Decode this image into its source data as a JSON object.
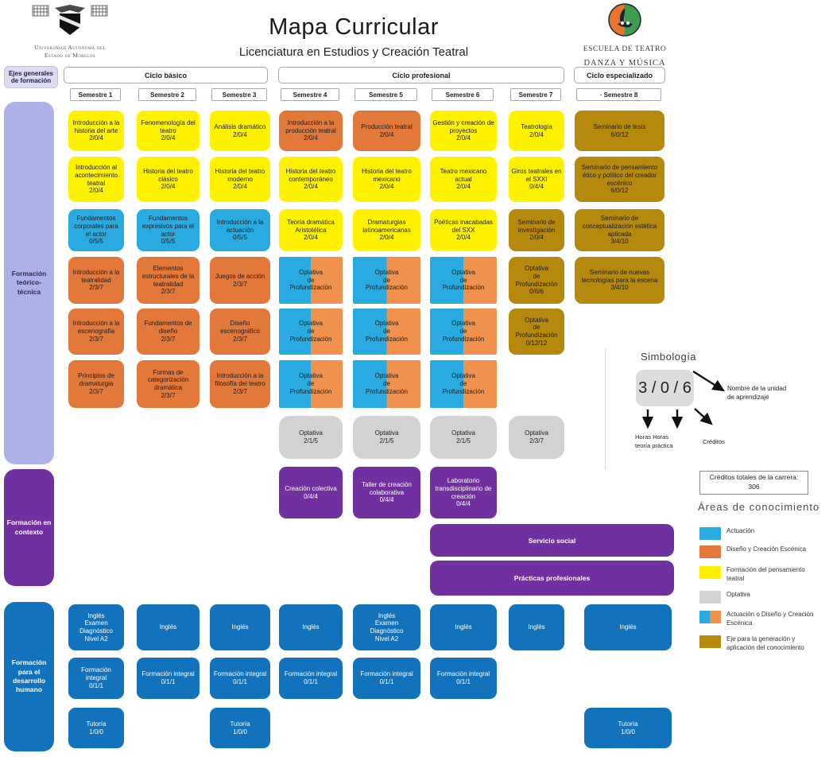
{
  "header": {
    "title": "Mapa Curricular",
    "subtitle": "Licenciatura en Estudios y Creación Teatral",
    "university_name": "Universidad Autónoma del\nEstado de Morelos",
    "school_name_line1": "ESCUELA DE TEATRO",
    "school_name_line2": "DANZA Y MÚSICA"
  },
  "axes_header": "Ejes generales\nde formación",
  "cycles": [
    {
      "label": "Ciclo básico"
    },
    {
      "label": "Ciclo profesional"
    },
    {
      "label": "Ciclo especializado"
    }
  ],
  "semesters": [
    "Semestre 1",
    "Semestre 2",
    "Semestre 3",
    "Semestre 4",
    "Semestre 5",
    "Semestre 6",
    "Semestre 7",
    "· Semestre 8"
  ],
  "bands": [
    {
      "label": "Formación\nteórico-\ntécnica"
    },
    {
      "label": "Formación en\ncontexto"
    },
    {
      "label": "Formación\npara el\ndesarrollo\nhumano"
    }
  ],
  "bars": [
    {
      "label": "Servicio social"
    },
    {
      "label": "Prácticas profesionales"
    }
  ],
  "courses": [
    {
      "sem": 1,
      "row": "r1",
      "area": "yellow",
      "name": "Introducción a la historia del arte",
      "hours": "2/0/4"
    },
    {
      "sem": 2,
      "row": "r1",
      "area": "yellow",
      "name": "Fenomenología del teatro",
      "hours": "2/0/4"
    },
    {
      "sem": 3,
      "row": "r1",
      "area": "yellow",
      "name": "Análisis dramático",
      "hours": "2/0/4"
    },
    {
      "sem": 4,
      "row": "r1",
      "area": "orange",
      "name": "Introducción a la producción teatral",
      "hours": "2/0/4"
    },
    {
      "sem": 5,
      "row": "r1",
      "area": "orange",
      "name": "Producción teatral",
      "hours": "2/0/4"
    },
    {
      "sem": 6,
      "row": "r1",
      "area": "yellow",
      "name": "Gestión y creación de proyectos",
      "hours": "2/0/4"
    },
    {
      "sem": 7,
      "row": "r1",
      "area": "yellow",
      "name": "Teatrología",
      "hours": "2/0/4"
    },
    {
      "sem": 8,
      "row": "r1",
      "area": "gold",
      "name": "Seminario de tesis",
      "hours": "6/0/12"
    },
    {
      "sem": 1,
      "row": "r2",
      "area": "yellow",
      "name": "Introducción al acontecimiento teatral",
      "hours": "2/0/4"
    },
    {
      "sem": 2,
      "row": "r2",
      "area": "yellow",
      "name": "Historia del teatro clásico",
      "hours": "2/0/4"
    },
    {
      "sem": 3,
      "row": "r2",
      "area": "yellow",
      "name": "Historia del teatro moderno",
      "hours": "2/0/4"
    },
    {
      "sem": 4,
      "row": "r2",
      "area": "yellow",
      "name": "Historia del teatro contemporáneo",
      "hours": "2/0/4"
    },
    {
      "sem": 5,
      "row": "r2",
      "area": "yellow",
      "name": "Historia del teatro mexicano",
      "hours": "2/0/4"
    },
    {
      "sem": 6,
      "row": "r2",
      "area": "yellow",
      "name": "Teatro mexicano actual",
      "hours": "2/0/4"
    },
    {
      "sem": 7,
      "row": "r2",
      "area": "yellow",
      "name": "Giros teatrales en el SXXI",
      "hours": "0/4/4"
    },
    {
      "sem": 8,
      "row": "r2",
      "area": "gold",
      "name": "Seminario de pensamiento ético y político del creador escénico",
      "hours": "6/0/12"
    },
    {
      "sem": 1,
      "row": "r3",
      "area": "cyan",
      "name": "Fundamentos corporales para el actor",
      "hours": "0/5/5"
    },
    {
      "sem": 2,
      "row": "r3",
      "area": "cyan",
      "name": "Fundamentos expresivos para el actor",
      "hours": "0/5/5"
    },
    {
      "sem": 3,
      "row": "r3",
      "area": "cyan",
      "name": "Introducción a la actuación",
      "hours": "0/5/5"
    },
    {
      "sem": 4,
      "row": "r3",
      "area": "yellow",
      "name": "Teoría dramática Aristotélica",
      "hours": "2/0/4"
    },
    {
      "sem": 5,
      "row": "r3",
      "area": "yellow",
      "name": "Dramaturgias latinoamericanas",
      "hours": "2/0/4"
    },
    {
      "sem": 6,
      "row": "r3",
      "area": "yellow",
      "name": "Poéticas inacabadas del SXX",
      "hours": "2/0/4"
    },
    {
      "sem": 7,
      "row": "r3",
      "area": "gold",
      "name": "Seminario de investigación",
      "hours": "2/0/4"
    },
    {
      "sem": 8,
      "row": "r3",
      "area": "gold",
      "name": "Seminario de conceptualización estética aplicada",
      "hours": "3/4/10"
    },
    {
      "sem": 1,
      "row": "r4",
      "area": "orange",
      "name": "Introducción a la teatralidad",
      "hours": "2/3/7"
    },
    {
      "sem": 2,
      "row": "r4",
      "area": "orange",
      "name": "Elementos estructurales de la teatralidad",
      "hours": "2/3/7"
    },
    {
      "sem": 3,
      "row": "r4",
      "area": "orange",
      "name": "Juegos de acción",
      "hours": "2/3/7"
    },
    {
      "sem": 4,
      "row": "r4",
      "area": "split",
      "name": "Optativa\nde\nProfundización",
      "hours": ""
    },
    {
      "sem": 5,
      "row": "r4",
      "area": "split",
      "name": "Optativa\nde\nProfundización",
      "hours": ""
    },
    {
      "sem": 6,
      "row": "r4",
      "area": "split",
      "name": "Optativa\nde\nProfundización",
      "hours": ""
    },
    {
      "sem": 7,
      "row": "r4",
      "area": "gold",
      "name": "Optativa\nde\nProfundización",
      "hours": "0/6/6"
    },
    {
      "sem": 8,
      "row": "r4",
      "area": "gold",
      "name": "Seminario de nuevas tecnologías para la escena",
      "hours": "3/4/10"
    },
    {
      "sem": 1,
      "row": "r5",
      "area": "orange",
      "name": "Introducción a la escenografía",
      "hours": "2/3/7"
    },
    {
      "sem": 2,
      "row": "r5",
      "area": "orange",
      "name": "Fundamentos de diseño",
      "hours": "2/3/7"
    },
    {
      "sem": 3,
      "row": "r5",
      "area": "orange",
      "name": "Diseño escenográfico",
      "hours": "2/3/7"
    },
    {
      "sem": 4,
      "row": "r5",
      "area": "split",
      "name": "Optativa\nde\nProfundización",
      "hours": ""
    },
    {
      "sem": 5,
      "row": "r5",
      "area": "split",
      "name": "Optativa\nde\nProfundización",
      "hours": ""
    },
    {
      "sem": 6,
      "row": "r5",
      "area": "split",
      "name": "Optativa\nde\nProfundización",
      "hours": ""
    },
    {
      "sem": 7,
      "row": "r5",
      "area": "gold",
      "name": "Optativa\nde\nProfundización",
      "hours": "0/12/12"
    },
    {
      "sem": 1,
      "row": "r6",
      "area": "orange",
      "name": "Principios de dramaturgia",
      "hours": "2/3/7"
    },
    {
      "sem": 2,
      "row": "r6",
      "area": "orange",
      "name": "Formas de categorización dramática",
      "hours": "2/3/7"
    },
    {
      "sem": 3,
      "row": "r6",
      "area": "orange",
      "name": "Introducción a la filosofía del teatro",
      "hours": "2/3/7"
    },
    {
      "sem": 4,
      "row": "r6",
      "area": "split",
      "name": "Optativa\nde\nProfundización",
      "hours": ""
    },
    {
      "sem": 5,
      "row": "r6",
      "area": "split",
      "name": "Optativa\nde\nProfundización",
      "hours": ""
    },
    {
      "sem": 6,
      "row": "r6",
      "area": "split",
      "name": "Optativa\nde\nProfundización",
      "hours": ""
    },
    {
      "sem": 4,
      "row": "r7",
      "area": "gray",
      "name": "Optativa",
      "hours": "2/1/5"
    },
    {
      "sem": 5,
      "row": "r7",
      "area": "gray",
      "name": "Optativa",
      "hours": "2/1/5"
    },
    {
      "sem": 6,
      "row": "r7",
      "area": "gray",
      "name": "Optativa",
      "hours": "2/1/5"
    },
    {
      "sem": 7,
      "row": "r7",
      "area": "gray",
      "name": "Optativa",
      "hours": "2/3/7"
    },
    {
      "sem": 4,
      "row": "r8",
      "area": "purple",
      "name": "Creación colectiva",
      "hours": "0/4/4"
    },
    {
      "sem": 5,
      "row": "r8",
      "area": "purple",
      "name": "Taller de creación colaborativa",
      "hours": "0/4/4"
    },
    {
      "sem": 6,
      "row": "r8",
      "area": "purple",
      "name": "Laboratorio transdisciplinario de creación",
      "hours": "0/4/4"
    },
    {
      "sem": 1,
      "row": "ing",
      "area": "blue",
      "name": "Inglés\nExamen\nDiagnóstico\nNivel A2",
      "hours": ""
    },
    {
      "sem": 2,
      "row": "ing",
      "area": "blue",
      "name": "Inglés",
      "hours": ""
    },
    {
      "sem": 3,
      "row": "ing",
      "area": "blue",
      "name": "Inglés",
      "hours": ""
    },
    {
      "sem": 4,
      "row": "ing",
      "area": "blue",
      "name": "Inglés",
      "hours": ""
    },
    {
      "sem": 5,
      "row": "ing",
      "area": "blue",
      "name": "Inglés\nExamen\nDiagnóstico\nNivel A2",
      "hours": ""
    },
    {
      "sem": 6,
      "row": "ing",
      "area": "blue",
      "name": "Inglés",
      "hours": ""
    },
    {
      "sem": 7,
      "row": "ing",
      "area": "blue",
      "name": "Inglés",
      "hours": ""
    },
    {
      "sem": 8,
      "row": "ing",
      "area": "blue",
      "name": "Inglés",
      "hours": ""
    },
    {
      "sem": 1,
      "row": "fi",
      "area": "blue",
      "name": "Formación integral",
      "hours": "0/1/1"
    },
    {
      "sem": 2,
      "row": "fi",
      "area": "blue",
      "name": "Formación integral",
      "hours": "0/1/1"
    },
    {
      "sem": 3,
      "row": "fi",
      "area": "blue",
      "name": "Formación integral",
      "hours": "0/1/1"
    },
    {
      "sem": 4,
      "row": "fi",
      "area": "blue",
      "name": "Formación integral",
      "hours": "0/1/1"
    },
    {
      "sem": 5,
      "row": "fi",
      "area": "blue",
      "name": "Formación integral",
      "hours": "0/1/1"
    },
    {
      "sem": 6,
      "row": "fi",
      "area": "blue",
      "name": "Formación integral",
      "hours": "0/1/1"
    },
    {
      "sem": 1,
      "row": "tu",
      "area": "blue",
      "name": "Tutoría",
      "hours": "1/0/0"
    },
    {
      "sem": 3,
      "row": "tu",
      "area": "blue",
      "name": "Tutoría",
      "hours": "1/0/0"
    },
    {
      "sem": 8,
      "row": "tu",
      "area": "blue",
      "name": "Tutoría",
      "hours": "1/0/0"
    }
  ],
  "simbologia": {
    "title": "Simbología",
    "sample": "3 / 0 / 6",
    "name_label": "Nombre de la unidad\nde aprendizaje",
    "hours_label": "Horas  Horas\nteoría práctica",
    "credits_label": "Créditos"
  },
  "credits_total": {
    "label": "Créditos totales de la carrera:",
    "value": "306"
  },
  "legend": {
    "title": "Áreas de conocimiento",
    "items": [
      {
        "area": "cyan",
        "label": "Actuación"
      },
      {
        "area": "orange",
        "label": "Diseño y Creación Escénica"
      },
      {
        "area": "yellow",
        "label": "Formación del pensamiento\nteatral"
      },
      {
        "area": "gray",
        "label": "Optativa"
      },
      {
        "area": "split",
        "label": "Actuación o Diseño y Creación\nEscénica"
      },
      {
        "area": "gold",
        "label": "Eje para la generación y\naplicación del conocimiento"
      }
    ]
  },
  "colors": {
    "actuacion": "#29ABE2",
    "diseno": "#E2793B",
    "pensamiento": "#FFF200",
    "optativa": "#D2D2D2",
    "eje_conocimiento": "#B5890B",
    "contexto_purple": "#7030A0",
    "desarrollo_blue": "#1272BC",
    "teorico_lavender": "#ADB1E8"
  }
}
